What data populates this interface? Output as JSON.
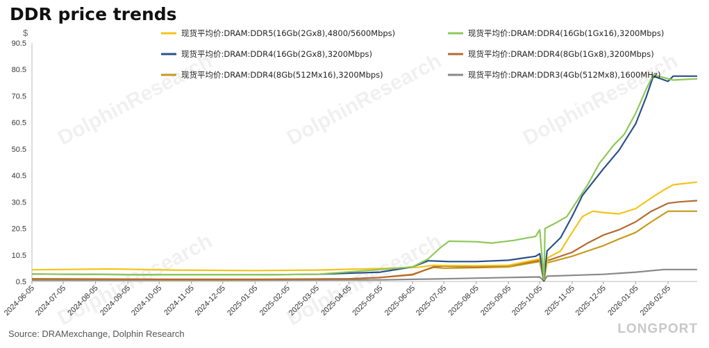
{
  "title": "DDR price trends",
  "unit": "$",
  "source": "Source:  DRAMexchange,  Dolphin  Research",
  "watermark": "DolphinResearch",
  "brand": "LONGPORT",
  "chart_data": {
    "type": "line",
    "title": "DDR price trends",
    "ylabel": "$",
    "ylim": [
      0.5,
      90.5
    ],
    "y_ticks": [
      0.5,
      10.5,
      20.5,
      30.5,
      40.5,
      50.5,
      60.5,
      70.5,
      80.5,
      90.5
    ],
    "x_range": [
      "2024-06-05",
      "2026-03-05"
    ],
    "x_ticks": [
      "2024-06-05",
      "2024-07-05",
      "2024-08-05",
      "2024-09-05",
      "2024-10-05",
      "2024-11-05",
      "2024-12-05",
      "2025-01-05",
      "2025-02-05",
      "2025-03-05",
      "2025-04-05",
      "2025-05-05",
      "2025-06-05",
      "2025-07-05",
      "2025-08-05",
      "2025-09-05",
      "2025-10-05",
      "2025-11-05",
      "2025-12-05",
      "2026-01-05",
      "2026-02-05"
    ],
    "legend_position": "top",
    "series": [
      {
        "name": "现货平均价:DRAM:DDR5(16Gb(2Gx8),4800/5600Mbps)",
        "color": "#f2c418",
        "points": [
          [
            "2024-06-05",
            4.9
          ],
          [
            "2024-08-20",
            5.2
          ],
          [
            "2024-10-20",
            4.8
          ],
          [
            "2025-01-05",
            4.6
          ],
          [
            "2025-03-05",
            4.8
          ],
          [
            "2025-05-05",
            5.4
          ],
          [
            "2025-06-10",
            5.8
          ],
          [
            "2025-06-25",
            6.6
          ],
          [
            "2025-07-05",
            6.5
          ],
          [
            "2025-08-05",
            6.4
          ],
          [
            "2025-09-05",
            6.6
          ],
          [
            "2025-10-05",
            9.0
          ],
          [
            "2025-10-09",
            1.0
          ],
          [
            "2025-10-13",
            9.5
          ],
          [
            "2025-10-25",
            12.0
          ],
          [
            "2025-11-05",
            19.0
          ],
          [
            "2025-11-15",
            25.0
          ],
          [
            "2025-11-25",
            27.0
          ],
          [
            "2025-12-05",
            26.5
          ],
          [
            "2025-12-20",
            26.0
          ],
          [
            "2026-01-05",
            28.0
          ],
          [
            "2026-01-20",
            32.0
          ],
          [
            "2026-02-01",
            35.0
          ],
          [
            "2026-02-10",
            37.0
          ],
          [
            "2026-03-05",
            38.0
          ]
        ]
      },
      {
        "name": "现货平均价:DRAM:DDR4(16Gb(1Gx16),3200Mbps)",
        "color": "#8dc857",
        "points": [
          [
            "2024-06-05",
            3.3
          ],
          [
            "2024-10-05",
            3.0
          ],
          [
            "2025-01-05",
            3.0
          ],
          [
            "2025-03-05",
            3.2
          ],
          [
            "2025-05-05",
            5.0
          ],
          [
            "2025-06-05",
            6.0
          ],
          [
            "2025-06-20",
            9.0
          ],
          [
            "2025-07-01",
            13.0
          ],
          [
            "2025-07-10",
            15.7
          ],
          [
            "2025-08-05",
            15.5
          ],
          [
            "2025-08-20",
            15.0
          ],
          [
            "2025-09-10",
            16.0
          ],
          [
            "2025-10-01",
            17.5
          ],
          [
            "2025-10-05",
            20.0
          ],
          [
            "2025-10-09",
            1.2
          ],
          [
            "2025-10-10",
            20.5
          ],
          [
            "2025-10-20",
            22.5
          ],
          [
            "2025-10-31",
            25.0
          ],
          [
            "2025-11-10",
            31.0
          ],
          [
            "2025-11-20",
            37.0
          ],
          [
            "2025-12-01",
            45.0
          ],
          [
            "2025-12-15",
            52.0
          ],
          [
            "2025-12-25",
            56.0
          ],
          [
            "2026-01-05",
            64.0
          ],
          [
            "2026-01-15",
            73.0
          ],
          [
            "2026-01-22",
            78.5
          ],
          [
            "2026-02-05",
            77.0
          ],
          [
            "2026-02-10",
            76.5
          ],
          [
            "2026-03-05",
            77.0
          ]
        ]
      },
      {
        "name": "现货平均价:DRAM:DDR4(16Gb(2Gx8),3200Mbps)",
        "color": "#2b4f8a",
        "points": [
          [
            "2024-06-05",
            3.3
          ],
          [
            "2024-10-05",
            3.0
          ],
          [
            "2025-01-05",
            3.0
          ],
          [
            "2025-03-05",
            3.2
          ],
          [
            "2025-05-05",
            4.0
          ],
          [
            "2025-06-05",
            6.0
          ],
          [
            "2025-06-20",
            8.3
          ],
          [
            "2025-07-10",
            8.0
          ],
          [
            "2025-08-05",
            8.0
          ],
          [
            "2025-09-05",
            8.5
          ],
          [
            "2025-10-01",
            10.0
          ],
          [
            "2025-10-05",
            11.0
          ],
          [
            "2025-10-09",
            0.8
          ],
          [
            "2025-10-12",
            12.0
          ],
          [
            "2025-10-25",
            17.0
          ],
          [
            "2025-11-05",
            25.0
          ],
          [
            "2025-11-15",
            33.0
          ],
          [
            "2025-11-25",
            38.0
          ],
          [
            "2025-12-05",
            43.0
          ],
          [
            "2025-12-20",
            50.0
          ],
          [
            "2026-01-05",
            60.0
          ],
          [
            "2026-01-15",
            70.0
          ],
          [
            "2026-01-22",
            78.0
          ],
          [
            "2026-02-05",
            76.0
          ],
          [
            "2026-02-10",
            78.0
          ],
          [
            "2026-03-05",
            78.0
          ]
        ]
      },
      {
        "name": "现货平均价:DRAM:DDR4(8Gb(1Gx8),3200Mbps)",
        "color": "#b46a2e",
        "points": [
          [
            "2024-06-05",
            1.5
          ],
          [
            "2024-10-05",
            1.3
          ],
          [
            "2025-01-05",
            1.3
          ],
          [
            "2025-04-05",
            1.5
          ],
          [
            "2025-05-05",
            2.0
          ],
          [
            "2025-06-05",
            3.0
          ],
          [
            "2025-06-25",
            6.0
          ],
          [
            "2025-07-05",
            6.3
          ],
          [
            "2025-08-05",
            6.0
          ],
          [
            "2025-09-05",
            6.5
          ],
          [
            "2025-10-05",
            8.5
          ],
          [
            "2025-10-09",
            0.7
          ],
          [
            "2025-10-12",
            8.3
          ],
          [
            "2025-11-05",
            11.5
          ],
          [
            "2025-11-20",
            15.0
          ],
          [
            "2025-12-05",
            18.0
          ],
          [
            "2025-12-20",
            20.0
          ],
          [
            "2026-01-05",
            23.0
          ],
          [
            "2026-01-20",
            27.0
          ],
          [
            "2026-02-05",
            30.0
          ],
          [
            "2026-02-15",
            30.5
          ],
          [
            "2026-03-05",
            31.0
          ]
        ]
      },
      {
        "name": "现货平均价:DRAM:DDR4(8Gb(512Mx16),3200Mbps)",
        "color": "#c49a1a",
        "points": [
          [
            "2024-06-05",
            1.4
          ],
          [
            "2024-10-05",
            1.2
          ],
          [
            "2025-01-05",
            1.2
          ],
          [
            "2025-04-05",
            1.5
          ],
          [
            "2025-05-05",
            2.0
          ],
          [
            "2025-06-05",
            3.2
          ],
          [
            "2025-06-25",
            5.8
          ],
          [
            "2025-07-05",
            5.5
          ],
          [
            "2025-08-05",
            5.7
          ],
          [
            "2025-09-05",
            6.0
          ],
          [
            "2025-10-05",
            8.0
          ],
          [
            "2025-10-09",
            0.6
          ],
          [
            "2025-10-12",
            7.5
          ],
          [
            "2025-11-05",
            10.0
          ],
          [
            "2025-11-20",
            12.0
          ],
          [
            "2025-12-05",
            14.0
          ],
          [
            "2025-12-20",
            16.5
          ],
          [
            "2026-01-05",
            19.0
          ],
          [
            "2026-01-20",
            23.0
          ],
          [
            "2026-02-05",
            27.0
          ],
          [
            "2026-02-15",
            27.0
          ],
          [
            "2026-03-05",
            27.0
          ]
        ]
      },
      {
        "name": "现货平均价:DRAM:DDR3(4Gb(512Mx8),1600MHz)",
        "color": "#888888",
        "points": [
          [
            "2024-06-05",
            1.0
          ],
          [
            "2024-10-05",
            1.0
          ],
          [
            "2025-01-05",
            1.0
          ],
          [
            "2025-05-05",
            1.1
          ],
          [
            "2025-07-05",
            1.5
          ],
          [
            "2025-09-05",
            2.0
          ],
          [
            "2025-10-05",
            2.2
          ],
          [
            "2025-10-09",
            0.6
          ],
          [
            "2025-10-12",
            2.5
          ],
          [
            "2025-11-05",
            2.8
          ],
          [
            "2025-12-05",
            3.2
          ],
          [
            "2026-01-05",
            4.0
          ],
          [
            "2026-02-01",
            5.0
          ],
          [
            "2026-03-05",
            5.0
          ]
        ]
      }
    ]
  }
}
